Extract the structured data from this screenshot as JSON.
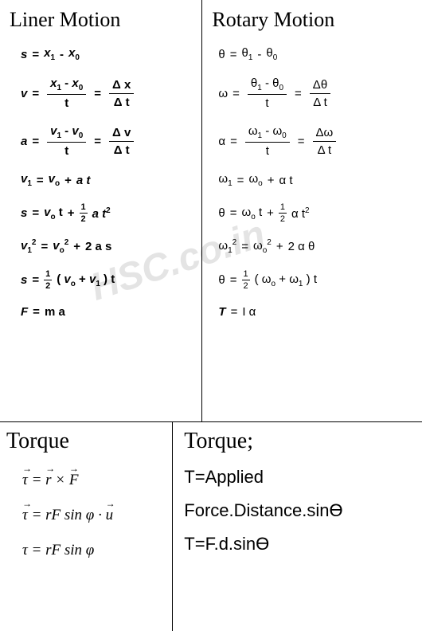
{
  "watermark": "HSC.co.in",
  "linear": {
    "title": "Liner Motion",
    "eq1_lhs": "s",
    "eq1_rhs_a": "x",
    "eq1_rhs_a_sub": "1",
    "eq1_rhs_b": "x",
    "eq1_rhs_b_sub": "0",
    "eq2_lhs": "v",
    "eq2_num_a": "x",
    "eq2_num_a_sub": "1",
    "eq2_num_b": "x",
    "eq2_num_b_sub": "0",
    "eq2_den": "t",
    "eq2_alt_num": "Δ x",
    "eq2_alt_den": "Δ t",
    "eq3_lhs": "a",
    "eq3_num_a": "v",
    "eq3_num_a_sub": "1",
    "eq3_num_b": "v",
    "eq3_num_b_sub": "0",
    "eq3_den": "t",
    "eq3_alt_num": "Δ v",
    "eq3_alt_den": "Δ t",
    "eq4_lhs": "v",
    "eq4_lhs_sub": "1",
    "eq4_a": "v",
    "eq4_a_sub": "o",
    "eq4_b": "a t",
    "eq5_lhs": "s",
    "eq5_a": "v",
    "eq5_a_sub": "o",
    "eq5_a_t": " t",
    "eq5_half_num": "1",
    "eq5_half_den": "2",
    "eq5_b": "a t",
    "eq5_b_sup": "2",
    "eq6_lhs": "v",
    "eq6_lhs_sub": "1",
    "eq6_lhs_sup": "2",
    "eq6_a": "v",
    "eq6_a_sub": "o",
    "eq6_a_sup": "2",
    "eq6_b": "2 a s",
    "eq7_lhs": "s",
    "eq7_half_num": "1",
    "eq7_half_den": "2",
    "eq7_paren_a": "v",
    "eq7_paren_a_sub": "o",
    "eq7_paren_b": "v",
    "eq7_paren_b_sub": "1",
    "eq7_t": "t",
    "eq8_lhs": "F",
    "eq8_rhs": "m a"
  },
  "rotary": {
    "title": "Rotary Motion",
    "eq1_lhs": "θ",
    "eq1_rhs_a": "θ",
    "eq1_rhs_a_sub": "1",
    "eq1_rhs_b": "θ",
    "eq1_rhs_b_sub": "0",
    "eq2_lhs": "ω",
    "eq2_num_a": "θ",
    "eq2_num_a_sub": "1",
    "eq2_num_b": "θ",
    "eq2_num_b_sub": "0",
    "eq2_den": "t",
    "eq2_alt_num": "Δθ",
    "eq2_alt_den": "Δ t",
    "eq3_lhs": "α",
    "eq3_num_a": "ω",
    "eq3_num_a_sub": "1",
    "eq3_num_b": "ω",
    "eq3_num_b_sub": "0",
    "eq3_den": "t",
    "eq3_alt_num": "Δω",
    "eq3_alt_den": "Δ t",
    "eq4_lhs": "ω",
    "eq4_lhs_sub": "1",
    "eq4_a": "ω",
    "eq4_a_sub": "o",
    "eq4_b": "α t",
    "eq5_lhs": "θ",
    "eq5_a": "ω",
    "eq5_a_sub": "o",
    "eq5_a_t": " t",
    "eq5_half_num": "1",
    "eq5_half_den": "2",
    "eq5_b": "α t",
    "eq5_b_sup": "2",
    "eq6_lhs": "ω",
    "eq6_lhs_sub": "1",
    "eq6_lhs_sup": "2",
    "eq6_a": "ω",
    "eq6_a_sub": "o",
    "eq6_a_sup": "2",
    "eq6_b": "2 α θ",
    "eq7_lhs": "θ",
    "eq7_half_num": "1",
    "eq7_half_den": "2",
    "eq7_paren_a": "ω",
    "eq7_paren_a_sub": "o",
    "eq7_paren_b": "ω",
    "eq7_paren_b_sub": "1",
    "eq7_t": "t",
    "eq8_lhs": "T",
    "eq8_rhs": "I α"
  },
  "torque_left": {
    "title": "Torque",
    "eq1": "τ⃗ = r⃗ × F⃗",
    "eq2": "τ⃗ = rF sin φ · u⃗",
    "eq3": "τ = rF sin φ"
  },
  "torque_right": {
    "title": "Torque;",
    "line1": "T=Applied",
    "line2": "Force.Distance.sinϴ",
    "line3": "T=F.d.sinϴ"
  },
  "colors": {
    "background": "#ffffff",
    "text": "#000000",
    "border": "#000000",
    "watermark": "#e4e4e4"
  }
}
